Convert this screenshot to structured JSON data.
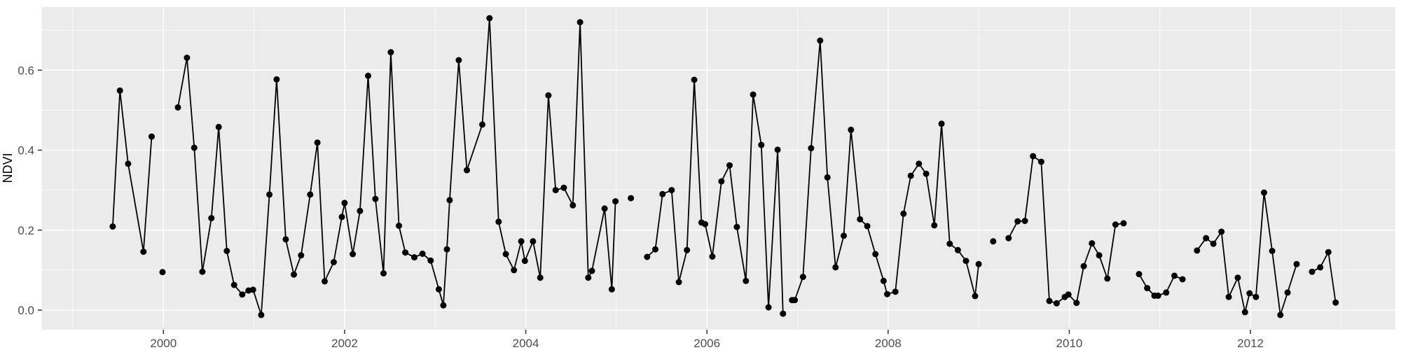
{
  "chart_data": {
    "type": "line",
    "title": "",
    "xlabel": "",
    "ylabel": "NDVI",
    "legend": "none",
    "grid": true,
    "x_range": [
      1998.66,
      2013.6
    ],
    "y_range": [
      -0.049,
      0.758
    ],
    "x_major_ticks": [
      2000,
      2002,
      2004,
      2006,
      2008,
      2010,
      2012
    ],
    "x_tick_labels": [
      "2000",
      "2002",
      "2004",
      "2006",
      "2008",
      "2010",
      "2012"
    ],
    "x_minor_ticks": [
      1999,
      2001,
      2003,
      2005,
      2007,
      2009,
      2011,
      2013
    ],
    "y_major_ticks": [
      0.0,
      0.2,
      0.4,
      0.6
    ],
    "y_tick_labels": [
      "0.0",
      "0.2",
      "0.4",
      "0.6"
    ],
    "y_minor_ticks": [
      0.1,
      0.3,
      0.5,
      0.7
    ],
    "panel_bg": "#EBEBEB",
    "grid_color": "#FFFFFF",
    "line_color": "#000000",
    "point_color": "#000000",
    "tick_label_color": "#4D4D4D",
    "tick_mark_color": "#333333",
    "series_name": "NDVI",
    "segments": [
      [
        [
          1999.44,
          0.209
        ],
        [
          1999.52,
          0.549
        ],
        [
          1999.61,
          0.366
        ],
        [
          1999.78,
          0.146
        ],
        [
          1999.87,
          0.434
        ]
      ],
      [
        [
          1999.99,
          0.095
        ]
      ],
      [
        [
          2000.16,
          0.507
        ],
        [
          2000.26,
          0.631
        ],
        [
          2000.34,
          0.406
        ],
        [
          2000.43,
          0.096
        ],
        [
          2000.53,
          0.23
        ],
        [
          2000.61,
          0.458
        ],
        [
          2000.7,
          0.148
        ],
        [
          2000.78,
          0.063
        ],
        [
          2000.87,
          0.039
        ],
        [
          2000.94,
          0.049
        ],
        [
          2000.99,
          0.051
        ],
        [
          2001.08,
          -0.012
        ],
        [
          2001.17,
          0.289
        ],
        [
          2001.25,
          0.577
        ],
        [
          2001.35,
          0.177
        ],
        [
          2001.44,
          0.089
        ],
        [
          2001.52,
          0.137
        ],
        [
          2001.62,
          0.289
        ],
        [
          2001.7,
          0.419
        ],
        [
          2001.78,
          0.072
        ],
        [
          2001.88,
          0.12
        ],
        [
          2001.97,
          0.233
        ],
        [
          2002.0,
          0.268
        ],
        [
          2002.09,
          0.14
        ],
        [
          2002.17,
          0.248
        ],
        [
          2002.26,
          0.586
        ],
        [
          2002.34,
          0.278
        ],
        [
          2002.43,
          0.092
        ],
        [
          2002.51,
          0.645
        ],
        [
          2002.6,
          0.211
        ],
        [
          2002.67,
          0.144
        ],
        [
          2002.77,
          0.132
        ],
        [
          2002.86,
          0.141
        ],
        [
          2002.95,
          0.124
        ],
        [
          2003.04,
          0.052
        ],
        [
          2003.09,
          0.012
        ],
        [
          2003.13,
          0.152
        ],
        [
          2003.16,
          0.275
        ],
        [
          2003.26,
          0.625
        ],
        [
          2003.35,
          0.35
        ],
        [
          2003.52,
          0.464
        ],
        [
          2003.6,
          0.73
        ],
        [
          2003.7,
          0.221
        ],
        [
          2003.78,
          0.14
        ],
        [
          2003.87,
          0.1
        ],
        [
          2003.95,
          0.172
        ],
        [
          2003.99,
          0.123
        ],
        [
          2004.08,
          0.172
        ],
        [
          2004.16,
          0.081
        ],
        [
          2004.25,
          0.537
        ],
        [
          2004.33,
          0.3
        ],
        [
          2004.42,
          0.306
        ],
        [
          2004.52,
          0.262
        ],
        [
          2004.6,
          0.72
        ],
        [
          2004.69,
          0.081
        ],
        [
          2004.73,
          0.098
        ],
        [
          2004.87,
          0.254
        ],
        [
          2004.95,
          0.052
        ],
        [
          2004.99,
          0.272
        ]
      ],
      [
        [
          2005.16,
          0.28
        ]
      ],
      [
        [
          2005.34,
          0.133
        ],
        [
          2005.43,
          0.152
        ],
        [
          2005.51,
          0.29
        ],
        [
          2005.61,
          0.3
        ],
        [
          2005.69,
          0.07
        ],
        [
          2005.78,
          0.15
        ],
        [
          2005.86,
          0.576
        ],
        [
          2005.94,
          0.219
        ],
        [
          2005.98,
          0.215
        ],
        [
          2006.06,
          0.134
        ],
        [
          2006.16,
          0.322
        ],
        [
          2006.25,
          0.362
        ],
        [
          2006.33,
          0.208
        ],
        [
          2006.43,
          0.073
        ],
        [
          2006.51,
          0.539
        ],
        [
          2006.6,
          0.413
        ],
        [
          2006.68,
          0.007
        ],
        [
          2006.78,
          0.401
        ],
        [
          2006.84,
          -0.009
        ]
      ],
      [
        [
          2006.94,
          0.025
        ],
        [
          2006.97,
          0.025
        ],
        [
          2007.06,
          0.083
        ],
        [
          2007.15,
          0.405
        ],
        [
          2007.25,
          0.674
        ],
        [
          2007.33,
          0.332
        ],
        [
          2007.42,
          0.107
        ],
        [
          2007.51,
          0.186
        ],
        [
          2007.59,
          0.451
        ],
        [
          2007.69,
          0.227
        ],
        [
          2007.77,
          0.21
        ],
        [
          2007.86,
          0.14
        ],
        [
          2007.95,
          0.073
        ],
        [
          2007.99,
          0.04
        ],
        [
          2008.08,
          0.046
        ],
        [
          2008.17,
          0.241
        ],
        [
          2008.25,
          0.336
        ],
        [
          2008.34,
          0.366
        ],
        [
          2008.42,
          0.341
        ],
        [
          2008.51,
          0.212
        ],
        [
          2008.59,
          0.466
        ],
        [
          2008.68,
          0.166
        ],
        [
          2008.77,
          0.15
        ],
        [
          2008.86,
          0.123
        ],
        [
          2008.96,
          0.035
        ],
        [
          2009.0,
          0.115
        ]
      ],
      [
        [
          2009.16,
          0.172
        ]
      ],
      [
        [
          2009.33,
          0.18
        ],
        [
          2009.43,
          0.222
        ],
        [
          2009.51,
          0.223
        ],
        [
          2009.6,
          0.385
        ],
        [
          2009.69,
          0.371
        ],
        [
          2009.78,
          0.023
        ],
        [
          2009.86,
          0.017
        ],
        [
          2009.95,
          0.033
        ],
        [
          2009.99,
          0.039
        ],
        [
          2010.08,
          0.018
        ],
        [
          2010.16,
          0.11
        ],
        [
          2010.25,
          0.167
        ],
        [
          2010.33,
          0.137
        ],
        [
          2010.42,
          0.079
        ],
        [
          2010.51,
          0.214
        ],
        [
          2010.6,
          0.217
        ]
      ],
      [
        [
          2010.77,
          0.09
        ],
        [
          2010.86,
          0.055
        ],
        [
          2010.94,
          0.036
        ],
        [
          2010.98,
          0.036
        ],
        [
          2011.07,
          0.044
        ],
        [
          2011.16,
          0.086
        ],
        [
          2011.25,
          0.077
        ]
      ],
      [
        [
          2011.41,
          0.149
        ],
        [
          2011.51,
          0.18
        ],
        [
          2011.59,
          0.166
        ],
        [
          2011.68,
          0.196
        ],
        [
          2011.76,
          0.033
        ],
        [
          2011.86,
          0.081
        ],
        [
          2011.94,
          -0.005
        ],
        [
          2011.99,
          0.042
        ],
        [
          2012.06,
          0.033
        ],
        [
          2012.15,
          0.294
        ],
        [
          2012.24,
          0.148
        ],
        [
          2012.33,
          -0.012
        ],
        [
          2012.41,
          0.044
        ],
        [
          2012.51,
          0.115
        ]
      ],
      [
        [
          2012.68,
          0.096
        ],
        [
          2012.77,
          0.107
        ],
        [
          2012.86,
          0.145
        ],
        [
          2012.94,
          0.019
        ]
      ]
    ]
  }
}
